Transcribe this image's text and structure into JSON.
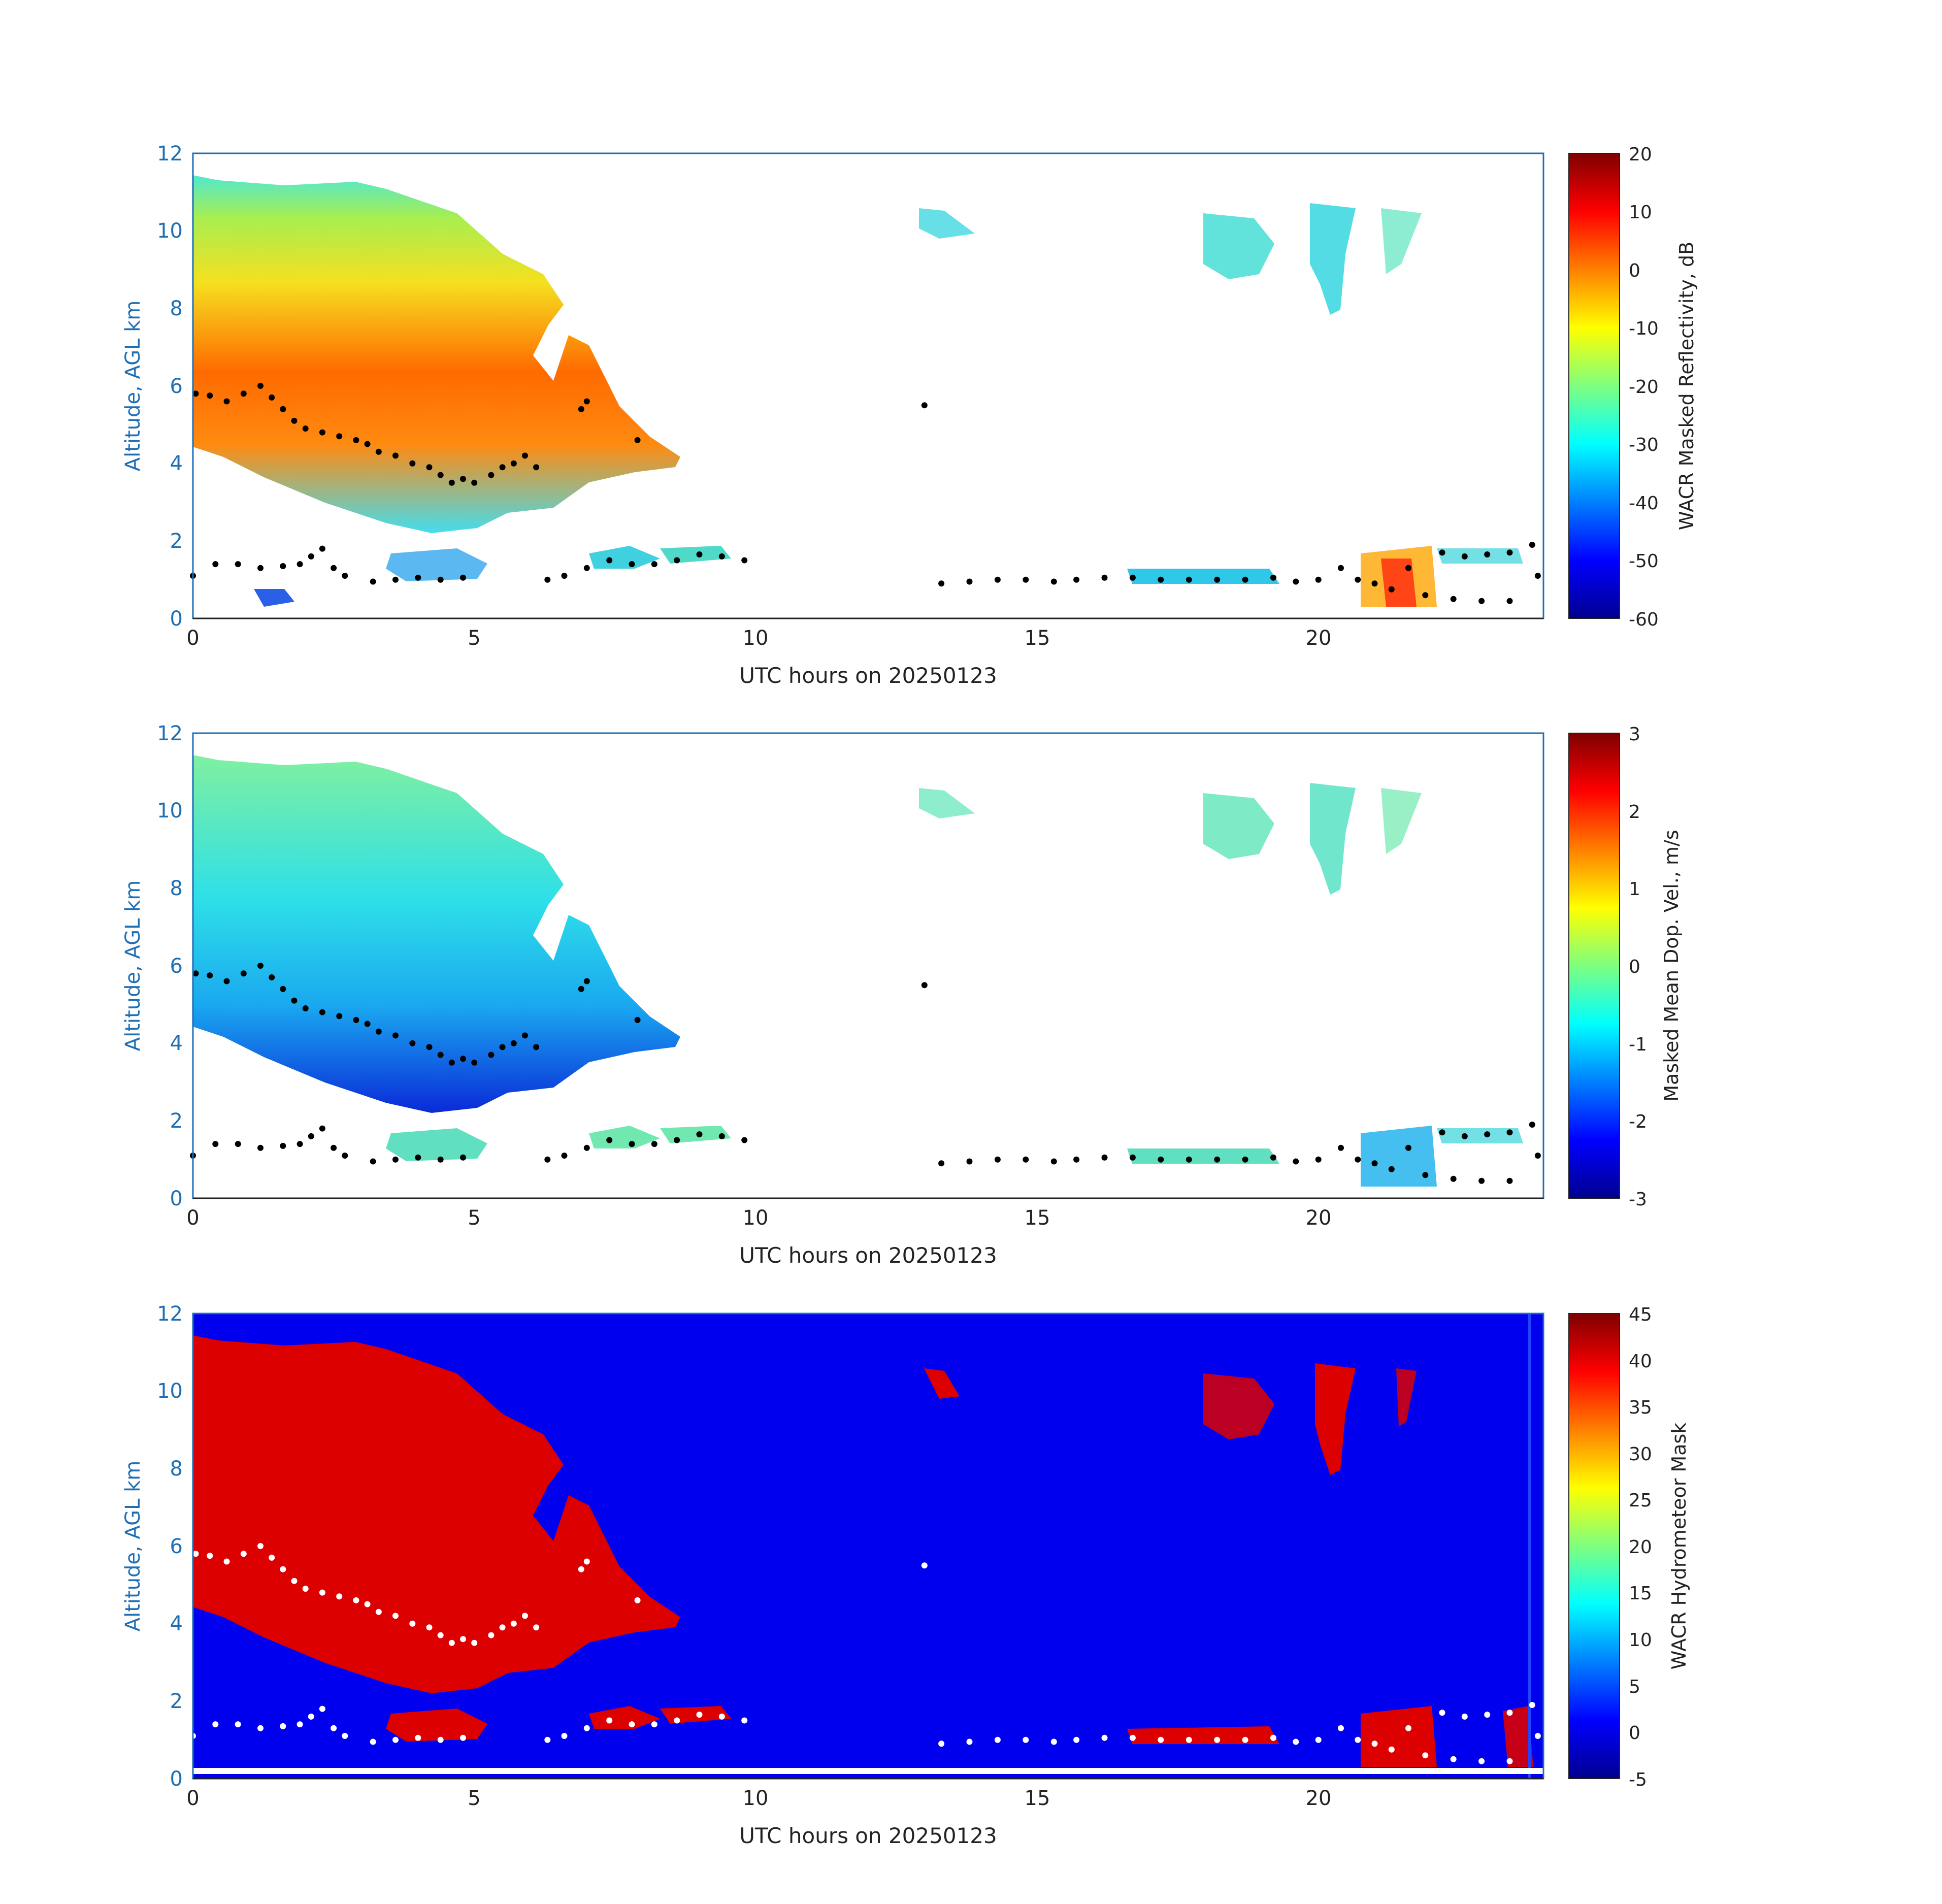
{
  "chart_data": [
    {
      "type": "heatmap",
      "panel": "reflectivity",
      "xlabel": "UTC hours on 20250123",
      "ylabel": "Altitude, AGL km",
      "xlim": [
        0,
        24
      ],
      "ylim": [
        0,
        12
      ],
      "xticks": [
        "0",
        "5",
        "10",
        "15",
        "20"
      ],
      "yticks": [
        "0",
        "2",
        "4",
        "6",
        "8",
        "10",
        "12"
      ],
      "colorbar": {
        "label": "WACR Masked Reflectivity, dB",
        "range": [
          -60,
          20
        ],
        "ticks": [
          "20",
          "10",
          "0",
          "-10",
          "-20",
          "-30",
          "-40",
          "-50",
          "-60"
        ],
        "colormap": "jet"
      },
      "background": "#ffffff",
      "marker_color": "#000000"
    },
    {
      "type": "heatmap",
      "panel": "doppler-velocity",
      "xlabel": "UTC hours on 20250123",
      "ylabel": "Altitude, AGL km",
      "xlim": [
        0,
        24
      ],
      "ylim": [
        0,
        12
      ],
      "xticks": [
        "0",
        "5",
        "10",
        "15",
        "20"
      ],
      "yticks": [
        "0",
        "2",
        "4",
        "6",
        "8",
        "10",
        "12"
      ],
      "colorbar": {
        "label": "Masked Mean Dop. Vel., m/s",
        "range": [
          -3,
          3
        ],
        "ticks": [
          "3",
          "2",
          "1",
          "0",
          "-1",
          "-2",
          "-3"
        ],
        "colormap": "jet"
      },
      "background": "#ffffff",
      "marker_color": "#000000"
    },
    {
      "type": "heatmap",
      "panel": "hydrometeor-mask",
      "xlabel": "UTC hours on 20250123",
      "ylabel": "Altitude, AGL km",
      "xlim": [
        0,
        24
      ],
      "ylim": [
        0,
        12
      ],
      "xticks": [
        "0",
        "5",
        "10",
        "15",
        "20"
      ],
      "yticks": [
        "0",
        "2",
        "4",
        "6",
        "8",
        "10",
        "12"
      ],
      "colorbar": {
        "label": "WACR Hydrometeor Mask",
        "range": [
          -5,
          45
        ],
        "ticks": [
          "45",
          "40",
          "35",
          "30",
          "25",
          "20",
          "15",
          "10",
          "5",
          "0",
          "-5"
        ],
        "colormap": "jet"
      },
      "background": "#0000ee",
      "marker_color": "#ffffff"
    }
  ],
  "cloud_base_points": [
    [
      0.05,
      5.8
    ],
    [
      0.3,
      5.75
    ],
    [
      0.6,
      5.6
    ],
    [
      0.9,
      5.8
    ],
    [
      1.2,
      6.0
    ],
    [
      1.4,
      5.7
    ],
    [
      1.6,
      5.4
    ],
    [
      1.8,
      5.1
    ],
    [
      2.0,
      4.9
    ],
    [
      2.3,
      4.8
    ],
    [
      2.6,
      4.7
    ],
    [
      2.9,
      4.6
    ],
    [
      3.1,
      4.5
    ],
    [
      3.3,
      4.3
    ],
    [
      3.6,
      4.2
    ],
    [
      3.9,
      4.0
    ],
    [
      4.2,
      3.9
    ],
    [
      4.4,
      3.7
    ],
    [
      4.6,
      3.5
    ],
    [
      4.8,
      3.6
    ],
    [
      5.0,
      3.5
    ],
    [
      5.3,
      3.7
    ],
    [
      5.5,
      3.9
    ],
    [
      5.7,
      4.0
    ],
    [
      5.9,
      4.2
    ],
    [
      6.1,
      3.9
    ],
    [
      6.9,
      5.4
    ],
    [
      7.0,
      5.6
    ],
    [
      7.9,
      4.6
    ],
    [
      13.0,
      5.5
    ],
    [
      0.0,
      1.1
    ],
    [
      0.4,
      1.4
    ],
    [
      0.8,
      1.4
    ],
    [
      1.2,
      1.3
    ],
    [
      1.6,
      1.35
    ],
    [
      1.9,
      1.4
    ],
    [
      2.1,
      1.6
    ],
    [
      2.3,
      1.8
    ],
    [
      2.5,
      1.3
    ],
    [
      2.7,
      1.1
    ],
    [
      3.2,
      0.95
    ],
    [
      3.6,
      1.0
    ],
    [
      4.0,
      1.05
    ],
    [
      4.4,
      1.0
    ],
    [
      4.8,
      1.05
    ],
    [
      6.3,
      1.0
    ],
    [
      6.6,
      1.1
    ],
    [
      7.0,
      1.3
    ],
    [
      7.4,
      1.5
    ],
    [
      7.8,
      1.4
    ],
    [
      8.2,
      1.4
    ],
    [
      8.6,
      1.5
    ],
    [
      9.0,
      1.65
    ],
    [
      9.4,
      1.6
    ],
    [
      9.8,
      1.5
    ],
    [
      13.3,
      0.9
    ],
    [
      13.8,
      0.95
    ],
    [
      14.3,
      1.0
    ],
    [
      14.8,
      1.0
    ],
    [
      15.3,
      0.95
    ],
    [
      15.7,
      1.0
    ],
    [
      16.2,
      1.05
    ],
    [
      16.7,
      1.05
    ],
    [
      17.2,
      1.0
    ],
    [
      17.7,
      1.0
    ],
    [
      18.2,
      1.0
    ],
    [
      18.7,
      1.0
    ],
    [
      19.2,
      1.05
    ],
    [
      19.6,
      0.95
    ],
    [
      20.0,
      1.0
    ],
    [
      20.4,
      1.3
    ],
    [
      20.7,
      1.0
    ],
    [
      21.0,
      0.9
    ],
    [
      21.3,
      0.75
    ],
    [
      21.6,
      1.3
    ],
    [
      21.9,
      0.6
    ],
    [
      22.2,
      1.7
    ],
    [
      22.6,
      1.6
    ],
    [
      23.0,
      1.65
    ],
    [
      23.4,
      1.7
    ],
    [
      23.8,
      1.9
    ],
    [
      22.4,
      0.5
    ],
    [
      22.9,
      0.45
    ],
    [
      23.4,
      0.45
    ],
    [
      23.9,
      1.1
    ]
  ]
}
